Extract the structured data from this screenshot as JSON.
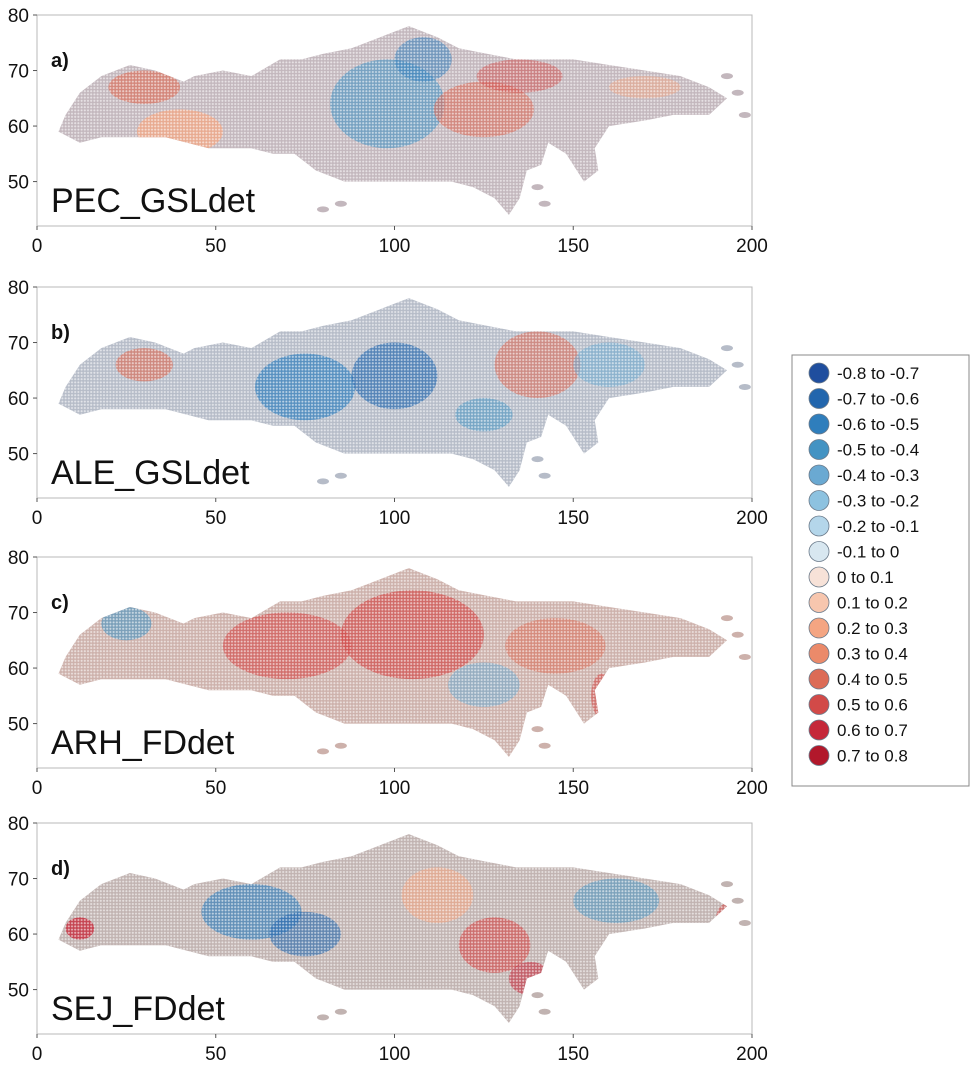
{
  "chart_data": {
    "type": "map",
    "xlim": [
      0,
      200
    ],
    "ylim": [
      42,
      80
    ],
    "xticks": [
      "0",
      "50",
      "100",
      "150",
      "200"
    ],
    "yticks": [
      "50",
      "60",
      "70",
      "80"
    ],
    "panels": [
      {
        "letter": "a)",
        "name": "PEC_GSLdet"
      },
      {
        "letter": "b)",
        "name": "ALE_GSLdet"
      },
      {
        "letter": "c)",
        "name": "ARH_FDdet"
      },
      {
        "letter": "d)",
        "name": "SEJ_FDdet"
      }
    ],
    "legend": [
      {
        "label": "-0.8  to  -0.7",
        "color": "#1f4e9e"
      },
      {
        "label": "-0.7  to  -0.6",
        "color": "#2266ad"
      },
      {
        "label": "-0.6  to  -0.5",
        "color": "#2f7ebc"
      },
      {
        "label": "-0.5  to  -0.4",
        "color": "#4393c3"
      },
      {
        "label": "-0.4  to  -0.3",
        "color": "#6aa9d2"
      },
      {
        "label": "-0.3  to  -0.2",
        "color": "#8dc2e0"
      },
      {
        "label": "-0.2  to  -0.1",
        "color": "#b4d6ea"
      },
      {
        "label": "-0.1  to  0",
        "color": "#d8e7f0"
      },
      {
        "label": "0  to  0.1",
        "color": "#f7e2d8"
      },
      {
        "label": "0.1  to  0.2",
        "color": "#f7c6ae"
      },
      {
        "label": "0.2  to  0.3",
        "color": "#f4a582"
      },
      {
        "label": "0.3  to  0.4",
        "color": "#eb8a6a"
      },
      {
        "label": "0.4  to  0.5",
        "color": "#dc6b56"
      },
      {
        "label": "0.5  to  0.6",
        "color": "#d24a48"
      },
      {
        "label": "0.6  to  0.7",
        "color": "#c5283a"
      },
      {
        "label": "0.7  to  0.8",
        "color": "#b2182b"
      }
    ]
  }
}
